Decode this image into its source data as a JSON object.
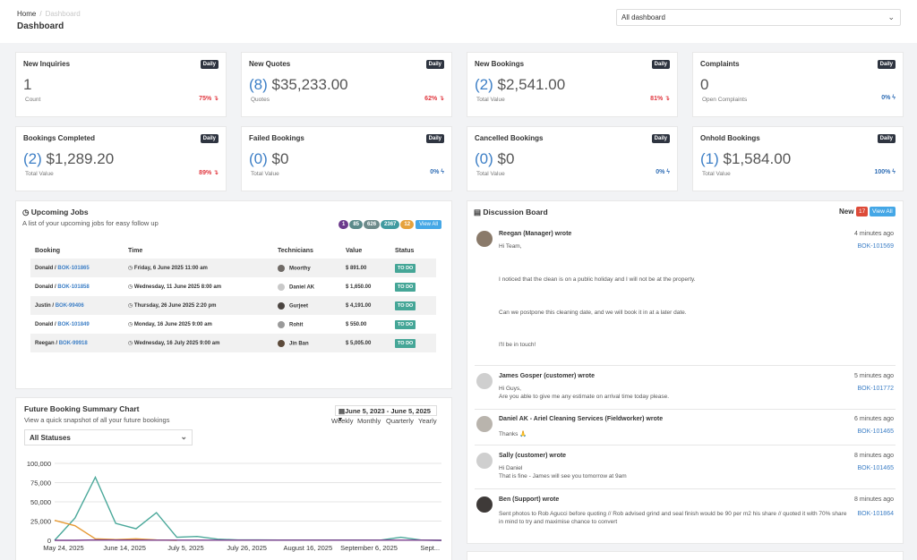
{
  "breadcrumb": {
    "home": "Home",
    "separator": "/",
    "current": "Dashboard"
  },
  "page_title": "Dashboard",
  "dashboard_select": {
    "value": "All dashboard"
  },
  "stats_row1": [
    {
      "title": "New Inquiries",
      "badge": "Daily",
      "count": "",
      "value": "1",
      "sub": "Count",
      "pct": "75% ↴",
      "trend": "down"
    },
    {
      "title": "New Quotes",
      "badge": "Daily",
      "count": "(8)",
      "value": "$35,233.00",
      "sub": "Quotes",
      "pct": "62% ↴",
      "trend": "down"
    },
    {
      "title": "New Bookings",
      "badge": "Daily",
      "count": "(2)",
      "value": "$2,541.00",
      "sub": "Total Value",
      "pct": "81% ↴",
      "trend": "down"
    },
    {
      "title": "Complaints",
      "badge": "Daily",
      "count": "",
      "value": "0",
      "sub": "Open Complaints",
      "pct": "0% ϟ",
      "trend": "flat"
    }
  ],
  "stats_row2": [
    {
      "title": "Bookings Completed",
      "badge": "Daily",
      "count": "(2)",
      "value": "$1,289.20",
      "sub": "Total Value",
      "pct": "89% ↴",
      "trend": "down"
    },
    {
      "title": "Failed Bookings",
      "badge": "Daily",
      "count": "(0)",
      "value": "$0",
      "sub": "Total Value",
      "pct": "0% ϟ",
      "trend": "flat"
    },
    {
      "title": "Cancelled Bookings",
      "badge": "Daily",
      "count": "(0)",
      "value": "$0",
      "sub": "Total Value",
      "pct": "0% ϟ",
      "trend": "flat"
    },
    {
      "title": "Onhold Bookings",
      "badge": "Daily",
      "count": "(1)",
      "value": "$1,584.00",
      "sub": "Total Value",
      "pct": "100% ϟ",
      "trend": "flat"
    }
  ],
  "upcoming": {
    "title": "Upcoming Jobs",
    "subtitle": "A list of your upcoming jobs for easy follow up",
    "pills": [
      {
        "label": "1",
        "color": "#6c3a8c"
      },
      {
        "label": "85",
        "color": "#5a8a8a"
      },
      {
        "label": "626",
        "color": "#6d8a8a"
      },
      {
        "label": "2367",
        "color": "#3f9aa0"
      },
      {
        "label": "12",
        "color": "#e6a23c"
      }
    ],
    "view_all": "View All",
    "columns": [
      "Booking",
      "Time",
      "Technicians",
      "Value",
      "Status"
    ],
    "rows": [
      {
        "customer": "Donald",
        "ref": "BOK-101865",
        "time": "Friday, 6 June 2025 11:00 am",
        "tech": "Moorthy",
        "value": "$ 891.00",
        "status": "TO DO"
      },
      {
        "customer": "Donald",
        "ref": "BOK-101858",
        "time": "Wednesday, 11 June 2025 8:00 am",
        "tech": "Daniel AK",
        "value": "$ 1,650.00",
        "status": "TO DO"
      },
      {
        "customer": "Justin",
        "ref": "BOK-99406",
        "time": "Thursday, 26 June 2025 2:20 pm",
        "tech": "Gurjeet",
        "value": "$ 4,191.00",
        "status": "TO DO"
      },
      {
        "customer": "Donald",
        "ref": "BOK-101849",
        "time": "Monday, 16 June 2025 9:00 am",
        "tech": "Rohit",
        "value": "$ 550.00",
        "status": "TO DO"
      },
      {
        "customer": "Reegan",
        "ref": "BOK-99918",
        "time": "Wednesday, 16 July 2025 9:00 am",
        "tech": "Jin Ban",
        "value": "$ 5,005.00",
        "status": "TO DO"
      }
    ]
  },
  "discussion": {
    "title": "Discussion Board",
    "new_label": "New",
    "new_count": "17",
    "view_all": "View All",
    "messages": [
      {
        "author": "Reegan (Manager) wrote",
        "time": "4 minutes ago",
        "ref": "BOK-101569",
        "lines": [
          "Hi Team,",
          "I noticed that the clean is on a public holiday and I will not be at the property.",
          "Can we postpone this cleaning date, and we will book it in at a later date.",
          "I'll be in touch!"
        ]
      },
      {
        "author": "James Gosper (customer) wrote",
        "time": "5 minutes ago",
        "ref": "BOK-101772",
        "lines": [
          "Hi Guys,",
          "Are you able to give me any estimate on arrival time today please."
        ]
      },
      {
        "author": "Daniel AK - Ariel Cleaning Services (Fieldworker) wrote",
        "time": "6 minutes ago",
        "ref": "BOK-101465",
        "lines": [
          "Thanks 🙏"
        ]
      },
      {
        "author": "Sally (customer) wrote",
        "time": "8 minutes ago",
        "ref": "BOK-101465",
        "lines": [
          "Hi Daniel",
          "That is fine - James will see you tomorrow at 9am"
        ]
      },
      {
        "author": "Ben (Support) wrote",
        "time": "8 minutes ago",
        "ref": "BOK-101864",
        "lines": [
          "Sent photos to Rob Agucci before quoting // Rob advised grind and seal finish would be 90 per m2 his share // quoted it with 70% share",
          "in mind to try and maximise chance to convert"
        ]
      }
    ]
  },
  "future_chart": {
    "title": "Future Booking Summary Chart",
    "subtitle": "View a quick snapshot of all your future bookings",
    "date_range": "June 5, 2023 - June 5, 2025",
    "periods": [
      "Weekly",
      "Monthly",
      "Quarterly",
      "Yearly"
    ],
    "status_select": "All Statuses"
  },
  "chart_data": {
    "type": "line",
    "title": "",
    "xlabel": "",
    "ylabel": "",
    "ylim": [
      0,
      100000
    ],
    "yticks": [
      0,
      25000,
      50000,
      75000,
      100000
    ],
    "ytick_labels": [
      "0",
      "25,000",
      "50,000",
      "75,000",
      "100,000"
    ],
    "xtick_labels": [
      "May 24, 2025",
      "June 14, 2025",
      "July 5, 2025",
      "July 26, 2025",
      "August 16, 2025",
      "September 6, 2025",
      "Sept..."
    ],
    "grid": true,
    "series": [
      {
        "name": "",
        "color": "#4aa89a",
        "x": [
          0,
          1,
          2,
          3,
          4,
          5,
          6,
          7,
          8,
          9,
          10,
          11,
          12,
          13,
          14,
          15,
          16,
          17,
          18,
          19
        ],
        "values": [
          0,
          29000,
          82000,
          22000,
          15000,
          36000,
          4000,
          5000,
          1500,
          500,
          500,
          300,
          300,
          300,
          300,
          300,
          200,
          4000,
          400,
          0
        ]
      },
      {
        "name": "",
        "color": "#e69a35",
        "x": [
          0,
          1,
          2,
          3,
          4,
          5,
          6
        ],
        "values": [
          26000,
          19000,
          2000,
          1000,
          2000,
          500,
          0
        ]
      },
      {
        "name": "",
        "color": "#7a3d8c",
        "x": [
          0,
          1,
          2,
          3,
          4,
          5,
          6,
          7,
          8,
          9,
          10,
          11,
          12,
          13,
          14,
          15,
          16,
          17,
          18,
          19
        ],
        "values": [
          0,
          0,
          500,
          300,
          300,
          200,
          200,
          200,
          200,
          200,
          200,
          200,
          200,
          200,
          200,
          200,
          200,
          200,
          200,
          0
        ]
      }
    ]
  }
}
